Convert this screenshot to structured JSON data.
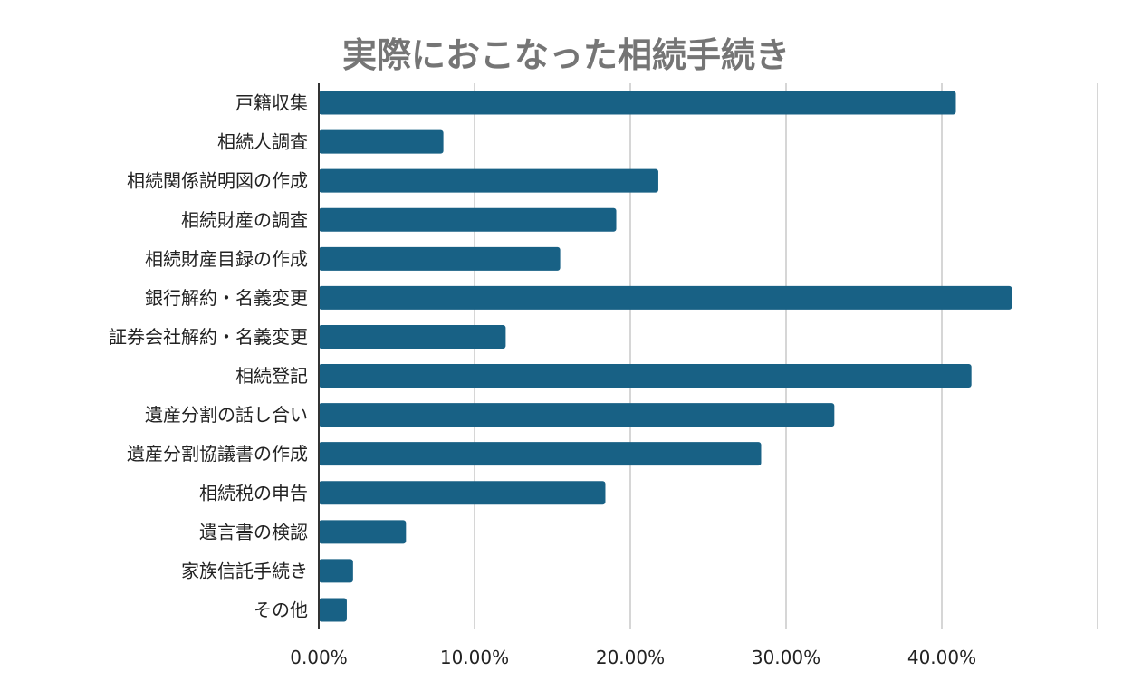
{
  "chart_data": {
    "type": "bar",
    "orientation": "horizontal",
    "title": "実際におこなった相続手続き",
    "categories": [
      "戸籍収集",
      "相続人調査",
      "相続関係説明図の作成",
      "相続財産の調査",
      "相続財産目録の作成",
      "銀行解約・名義変更",
      "証券会社解約・名義変更",
      "相続登記",
      "遺産分割の話し合い",
      "遺産分割協議書の作成",
      "相続税の申告",
      "遺言書の検認",
      "家族信託手続き",
      "その他"
    ],
    "values": [
      0.409,
      0.08,
      0.218,
      0.191,
      0.155,
      0.445,
      0.12,
      0.419,
      0.331,
      0.284,
      0.184,
      0.056,
      0.022,
      0.018
    ],
    "xlim": [
      0,
      0.5
    ],
    "xticks": [
      0,
      0.1,
      0.2,
      0.3,
      0.4
    ],
    "xtick_labels": [
      "0.00%",
      "10.00%",
      "20.00%",
      "30.00%",
      "40.00%"
    ],
    "grid": true,
    "legend": "none",
    "colors": {
      "bar": "#186185",
      "grid": "#c8c8c8",
      "axis": "#333333",
      "title": "#757575",
      "label": "#222222"
    }
  }
}
